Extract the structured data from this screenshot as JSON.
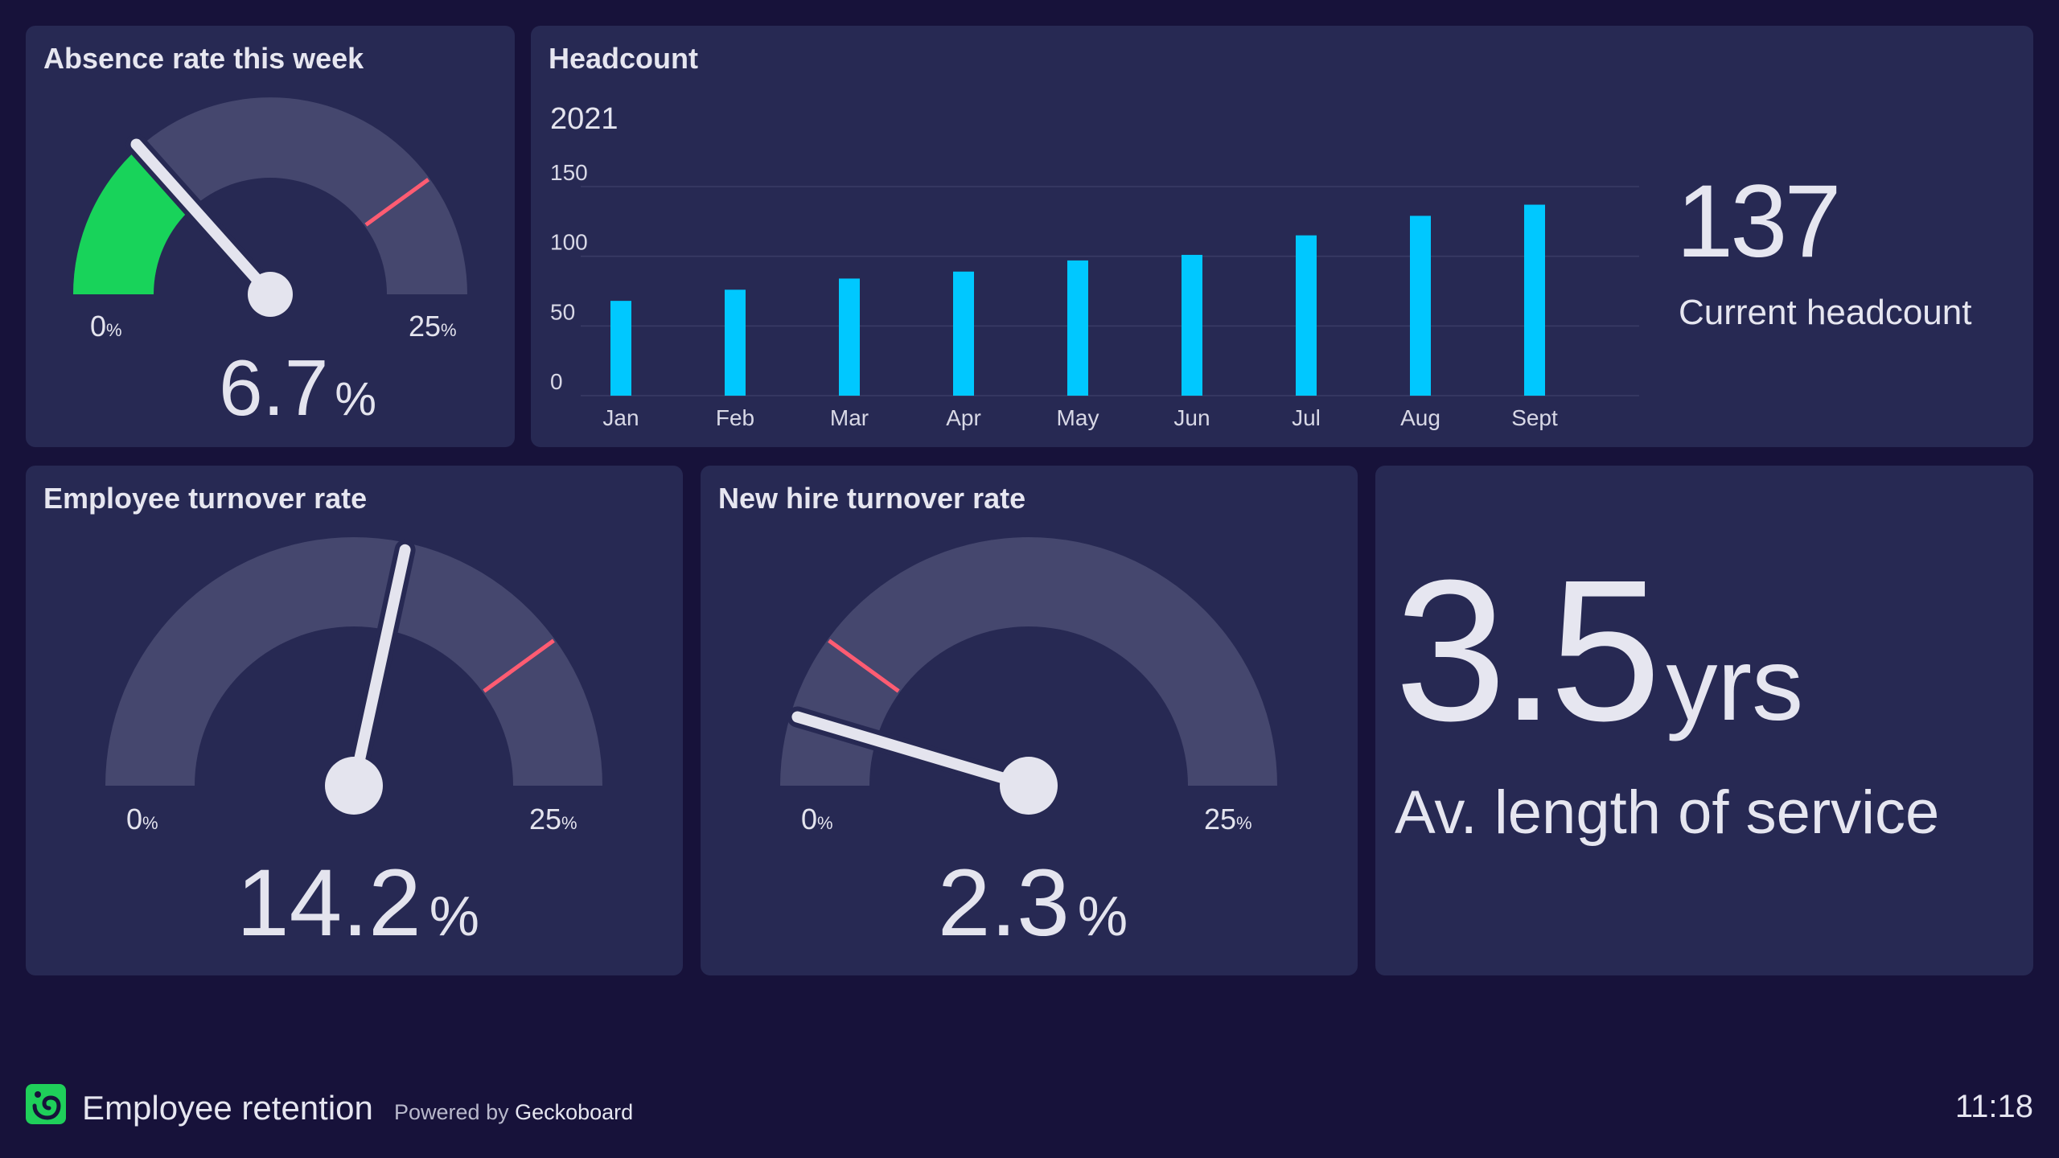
{
  "widgets": {
    "absence": {
      "title": "Absence rate this week",
      "min_label": "0",
      "max_label": "25",
      "unit": "%",
      "value_text": "6.7",
      "value": 6.7,
      "min": 0,
      "max": 25,
      "threshold": 20,
      "fill_color": "#18d35a"
    },
    "headcount": {
      "title": "Headcount",
      "current_value": "137",
      "current_label": "Current headcount"
    },
    "employee_turnover": {
      "title": "Employee turnover rate",
      "min_label": "0",
      "max_label": "25",
      "unit": "%",
      "value_text": "14.2",
      "value": 14.2,
      "min": 0,
      "max": 25,
      "threshold": 20
    },
    "new_hire_turnover": {
      "title": "New hire turnover rate",
      "min_label": "0",
      "max_label": "25",
      "unit": "%",
      "value_text": "2.3",
      "value": 2.3,
      "min": 0,
      "max": 25,
      "threshold": 5
    },
    "service": {
      "value": "3.5",
      "unit": "yrs",
      "label": "Av. length of service"
    }
  },
  "chart_data": {
    "type": "bar",
    "title": "2021",
    "categories": [
      "Jan",
      "Feb",
      "Mar",
      "Apr",
      "May",
      "Jun",
      "Jul",
      "Aug",
      "Sept"
    ],
    "values": [
      68,
      76,
      84,
      89,
      97,
      101,
      115,
      129,
      137
    ],
    "yticks": [
      0,
      50,
      100,
      150
    ],
    "ylim": [
      0,
      150
    ],
    "grid": true,
    "bar_color": "#00c8ff"
  },
  "footer": {
    "title": "Employee retention",
    "powered_prefix": "Powered by ",
    "powered_brand": "Geckoboard",
    "time": "11:18"
  },
  "colors": {
    "background": "#17123a",
    "widget": "#272953",
    "gauge_track": "#45476e",
    "threshold": "#ff5c72",
    "needle": "#e4e4ee",
    "accent_green": "#1fcf5a"
  }
}
